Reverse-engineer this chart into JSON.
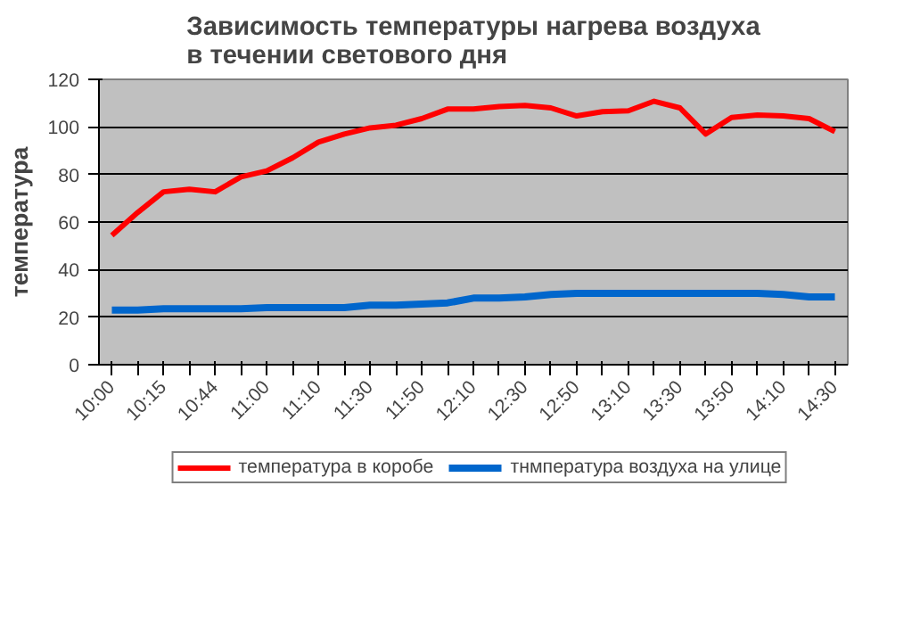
{
  "chart_data": {
    "type": "line",
    "title": "Зависимость температуры нагрева воздуха в течении светового дня",
    "ylabel": "температура",
    "categories": [
      "10:00",
      null,
      "10:15",
      null,
      "10:44",
      null,
      "11:00",
      null,
      "11:10",
      null,
      "11:30",
      null,
      "11:50",
      null,
      "12:10",
      null,
      "12:30",
      null,
      "12:50",
      null,
      "13:10",
      null,
      "13:30",
      null,
      "13:50",
      null,
      "14:10",
      null,
      "14:30"
    ],
    "series": [
      {
        "name": "температура в коробе",
        "color": "#ff0000",
        "values": [
          54.4,
          64,
          72.7,
          73.8,
          72.7,
          79,
          81.5,
          87,
          93.6,
          97,
          99.6,
          100.7,
          103.5,
          107.5,
          107.5,
          108.6,
          109,
          108,
          104.6,
          106.4,
          106.8,
          110.8,
          108,
          97,
          104,
          105,
          104.6,
          103.5,
          98
        ]
      },
      {
        "name": "тнмпература воздуха на улице",
        "color": "#0066cc",
        "values": [
          23,
          23,
          23.5,
          23.5,
          23.5,
          23.5,
          24,
          24,
          24,
          24,
          25,
          25,
          25.5,
          26,
          28,
          28,
          28.5,
          29.5,
          30,
          30,
          30,
          30,
          30,
          30,
          30,
          30,
          29.5,
          28.5,
          28.5
        ]
      }
    ],
    "ylim": [
      0,
      120
    ],
    "yticks": [
      0,
      20,
      40,
      60,
      80,
      100,
      120
    ],
    "grid": "y",
    "legend": "bottom"
  }
}
